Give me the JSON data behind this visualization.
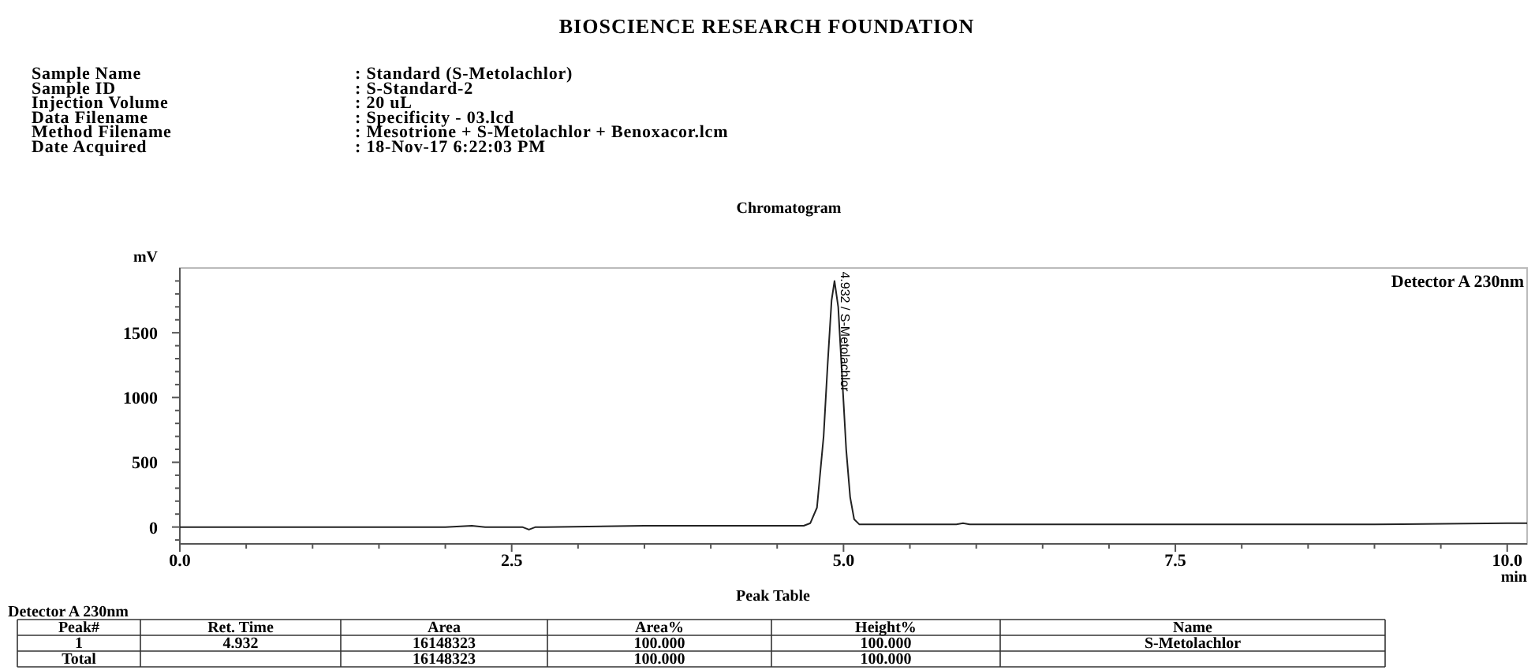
{
  "chart_data": {
    "type": "line",
    "title": "BIOSCIENCE RESEARCH FOUNDATION",
    "subtitle": "Chromatogram",
    "xlabel": "min",
    "ylabel": "mV",
    "x": [
      0,
      1.0,
      2.0,
      2.2,
      2.3,
      2.5,
      2.58,
      2.63,
      2.68,
      2.75,
      3.5,
      4.5,
      4.7,
      4.75,
      4.8,
      4.85,
      4.88,
      4.91,
      4.932,
      4.96,
      4.99,
      5.02,
      5.05,
      5.08,
      5.12,
      5.5,
      5.85,
      5.9,
      5.95,
      6.5,
      8.0,
      9.0,
      10.0,
      10.15
    ],
    "values": [
      0,
      0,
      0,
      10,
      0,
      0,
      0,
      -20,
      0,
      0,
      10,
      10,
      10,
      30,
      150,
      700,
      1250,
      1750,
      1900,
      1700,
      1150,
      600,
      230,
      60,
      20,
      20,
      20,
      30,
      20,
      20,
      20,
      20,
      30,
      30
    ],
    "color": "#222222",
    "line_style": "solid",
    "marker": "none",
    "grid": false,
    "xlim": [
      0,
      10.15
    ],
    "ylim": [
      -130,
      2000
    ],
    "xticks": [
      {
        "value": 0,
        "label": "0.0"
      },
      {
        "value": 0.5,
        "label": null
      },
      {
        "value": 1,
        "label": null
      },
      {
        "value": 1.5,
        "label": null
      },
      {
        "value": 2,
        "label": null
      },
      {
        "value": 2.5,
        "label": "2.5"
      },
      {
        "value": 3,
        "label": null
      },
      {
        "value": 3.5,
        "label": null
      },
      {
        "value": 4,
        "label": null
      },
      {
        "value": 4.5,
        "label": null
      },
      {
        "value": 5,
        "label": "5.0"
      },
      {
        "value": 5.5,
        "label": null
      },
      {
        "value": 6,
        "label": null
      },
      {
        "value": 6.5,
        "label": null
      },
      {
        "value": 7,
        "label": null
      },
      {
        "value": 7.5,
        "label": "7.5"
      },
      {
        "value": 8,
        "label": null
      },
      {
        "value": 8.5,
        "label": null
      },
      {
        "value": 9,
        "label": null
      },
      {
        "value": 9.5,
        "label": null
      },
      {
        "value": 10,
        "label": "10.0"
      }
    ],
    "yticks": [
      {
        "value": -100,
        "label": null
      },
      0,
      {
        "value": 100,
        "label": null
      },
      {
        "value": 200,
        "label": null
      },
      {
        "value": 300,
        "label": null
      },
      {
        "value": 400,
        "label": null
      },
      500,
      {
        "value": 600,
        "label": null
      },
      {
        "value": 700,
        "label": null
      },
      {
        "value": 800,
        "label": null
      },
      {
        "value": 900,
        "label": null
      },
      1000,
      {
        "value": 1100,
        "label": null
      },
      {
        "value": 1200,
        "label": null
      },
      {
        "value": 1300,
        "label": null
      },
      {
        "value": 1400,
        "label": null
      },
      1500,
      {
        "value": 1600,
        "label": null
      },
      {
        "value": 1700,
        "label": null
      },
      {
        "value": 1800,
        "label": null
      },
      {
        "value": 1900,
        "label": null
      }
    ],
    "annotations": [
      {
        "text": "4.932 / S-Metolachlor",
        "x": 4.932,
        "y": 1900
      },
      "Detector A 230nm",
      "Sample Name",
      "Sample ID",
      "Injection Volume",
      "Data Filename",
      "Method Filename",
      "Date Acquired",
      ": Standard (S-Metolachlor)",
      ": S-Standard-2",
      ": 20 uL",
      ": Specificity - 03.lcd",
      ": Mesotrione + S-Metolachlor + Benoxacor.lcm",
      ": 18-Nov-17 6:22:03 PM",
      "Peak Table",
      "Detector A 230nm",
      "Peak#",
      "Ret. Time",
      "Area",
      "Area%",
      "Height%",
      "Name",
      "1",
      "4.932",
      "16148323",
      "100.000",
      "100.000",
      "S-Metolachlor",
      "Total",
      "16148323",
      "100.000",
      "100.000"
    ]
  }
}
